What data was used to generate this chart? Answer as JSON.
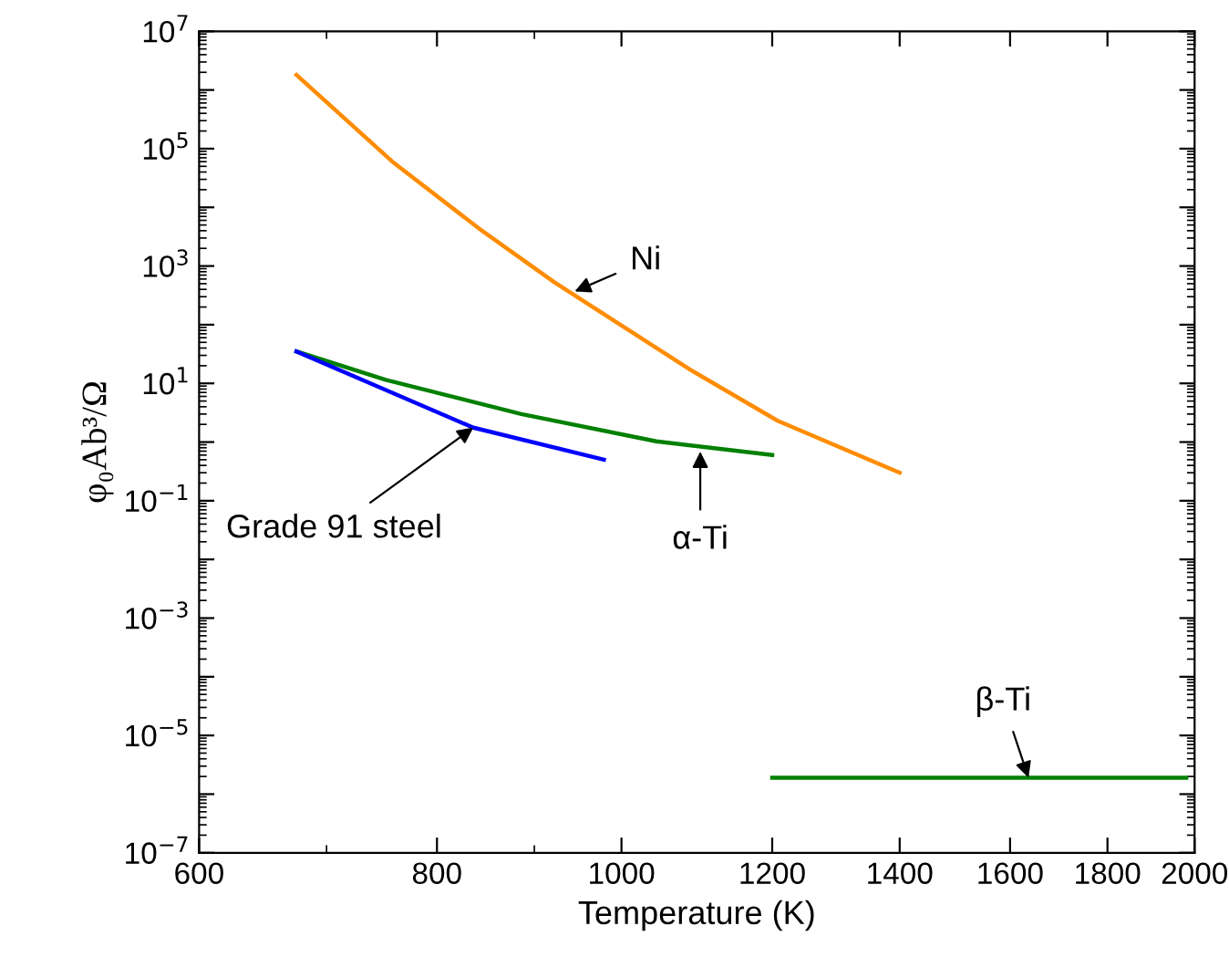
{
  "chart_data": {
    "type": "line",
    "xlabel": "Temperature (K)",
    "ylabel": "φ₀Ab³/Ω",
    "log": "xy",
    "grid": false,
    "marker": "none",
    "line_style": "solid",
    "xlim": [
      600,
      2000
    ],
    "xticks": [
      600,
      800,
      1000,
      1200,
      1400,
      1600,
      1800,
      2000
    ],
    "ylim": [
      1e-07,
      10000000.0
    ],
    "yticks": [
      {
        "value": 1e-07,
        "label": "10$^{−7}$"
      },
      {
        "value": 1e-06,
        "label": null
      },
      {
        "value": 1e-05,
        "label": "10$^{−5}$"
      },
      {
        "value": 0.0001,
        "label": null
      },
      {
        "value": 0.001,
        "label": "10$^{−3}$"
      },
      {
        "value": 0.01,
        "label": null
      },
      {
        "value": 0.1,
        "label": "10$^{−1}$"
      },
      {
        "value": 1,
        "label": null
      },
      {
        "value": 10,
        "label": "10$^{1}$"
      },
      {
        "value": 100,
        "label": null
      },
      {
        "value": 1000,
        "label": "10$^{3}$"
      },
      {
        "value": 10000.0,
        "label": null
      },
      {
        "value": 100000.0,
        "label": "10$^{5}$"
      },
      {
        "value": 1000000.0,
        "label": null
      },
      {
        "value": 10000000.0,
        "label": "10$^{7}$"
      }
    ],
    "series": [
      {
        "color": "#ff8c00",
        "x": [
          675,
          758,
          843,
          922,
          1087,
          1208,
          1400
        ],
        "values": [
          1800000,
          60000,
          4200,
          530,
          17,
          2.3,
          0.3
        ]
      },
      {
        "color": "#008000",
        "x": [
          675,
          752,
          886,
          1043,
          1200
        ],
        "values": [
          35,
          11.5,
          3.0,
          1.03,
          0.6
        ]
      },
      {
        "color": "#0000ff",
        "x": [
          675,
          752,
          836,
          979
        ],
        "values": [
          35,
          7.7,
          1.76,
          0.5
        ]
      },
      {
        "color": "#008000",
        "x": [
          1200,
          1980
        ],
        "values": [
          1.9e-06,
          1.9e-06
        ]
      }
    ],
    "annotations": [
      {
        "text": "Ni",
        "x": 945,
        "y": 370
      },
      {
        "text": "Grade 91 steel",
        "x": 836,
        "y": 1.76
      },
      {
        "text": "α-Ti",
        "x": 1100,
        "y": 0.69
      },
      {
        "text": "β-Ti",
        "x": 1636,
        "y": 1.9e-06
      }
    ]
  }
}
